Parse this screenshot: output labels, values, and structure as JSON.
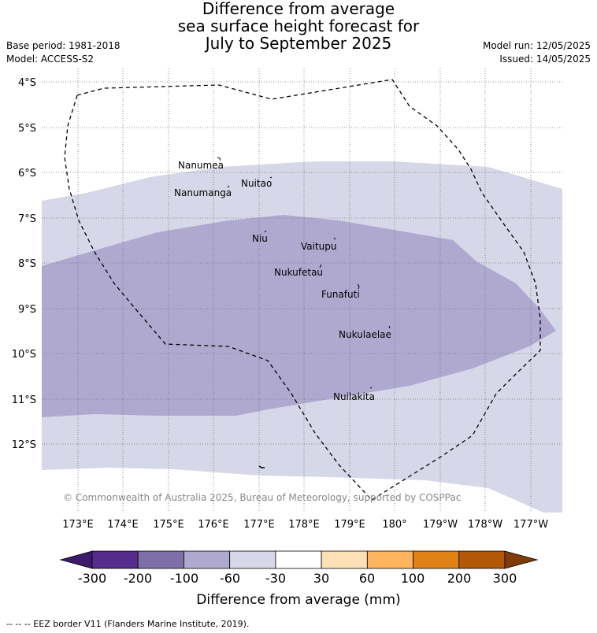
{
  "title": {
    "line1": "Difference from average",
    "line2": "sea surface height forecast for",
    "line3": "July to September 2025"
  },
  "meta_left": {
    "base_period": "Base period: 1981-2018",
    "model": "Model: ACCESS-S2"
  },
  "meta_right": {
    "model_run": "Model run: 12/05/2025",
    "issued": "Issued: 14/05/2025"
  },
  "latitude_labels": [
    "4°S",
    "5°S",
    "6°S",
    "7°S",
    "8°S",
    "9°S",
    "10°S",
    "11°S",
    "12°S"
  ],
  "longitude_labels": [
    "173°E",
    "174°E",
    "175°E",
    "176°E",
    "177°E",
    "178°E",
    "179°E",
    "180°",
    "179°W",
    "178°W",
    "177°W"
  ],
  "islands": [
    "Nanumea",
    "Nuitao",
    "Nanumanga",
    "Niu",
    "Vaitupu",
    "Nukufetau",
    "Funafuti",
    "Nukulaelae",
    "Nuilakita"
  ],
  "credit": "© Commonwealth of Australia 2025, Bureau of Meteorology, supported by COSPPac",
  "colorbar": {
    "ticks": [
      "-300",
      "-200",
      "-100",
      "-60",
      "-30",
      "30",
      "60",
      "100",
      "200",
      "300"
    ],
    "colors": [
      "#3d1a6b",
      "#552b8c",
      "#7f6fa9",
      "#afa9d0",
      "#d6d7e8",
      "#ffffff",
      "#fee0b6",
      "#fdb45d",
      "#e08216",
      "#b35806",
      "#7f3b08"
    ],
    "label": "Difference from average (mm)"
  },
  "legend_note": "-- -- -- EEZ border V11 (Flanders Marine Institute, 2019).",
  "fill_colors": {
    "light": "#d6d7e8",
    "medium": "#afa9d0"
  }
}
